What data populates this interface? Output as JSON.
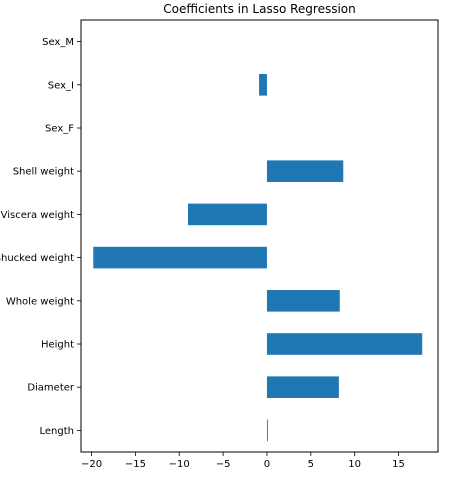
{
  "chart_data": {
    "type": "bar",
    "orientation": "horizontal",
    "title": "Coefficients in Lasso Regression",
    "xlabel": "",
    "ylabel": "",
    "categories": [
      "Length",
      "Diameter",
      "Height",
      "Whole weight",
      "Shucked weight",
      "Viscera weight",
      "Shell weight",
      "Sex_F",
      "Sex_I",
      "Sex_M"
    ],
    "values": [
      0.1,
      8.2,
      17.7,
      8.3,
      -19.8,
      -9.0,
      8.7,
      0.0,
      -0.9,
      0.0
    ],
    "xlim": [
      -21.2,
      19.5
    ],
    "xticks": [
      -20,
      -15,
      -10,
      -5,
      0,
      5,
      10,
      15
    ],
    "xtick_labels": [
      "−20",
      "−15",
      "−10",
      "−5",
      "0",
      "5",
      "10",
      "15"
    ],
    "bar_color": "#1f77b4",
    "grid": false,
    "legend": "none"
  }
}
